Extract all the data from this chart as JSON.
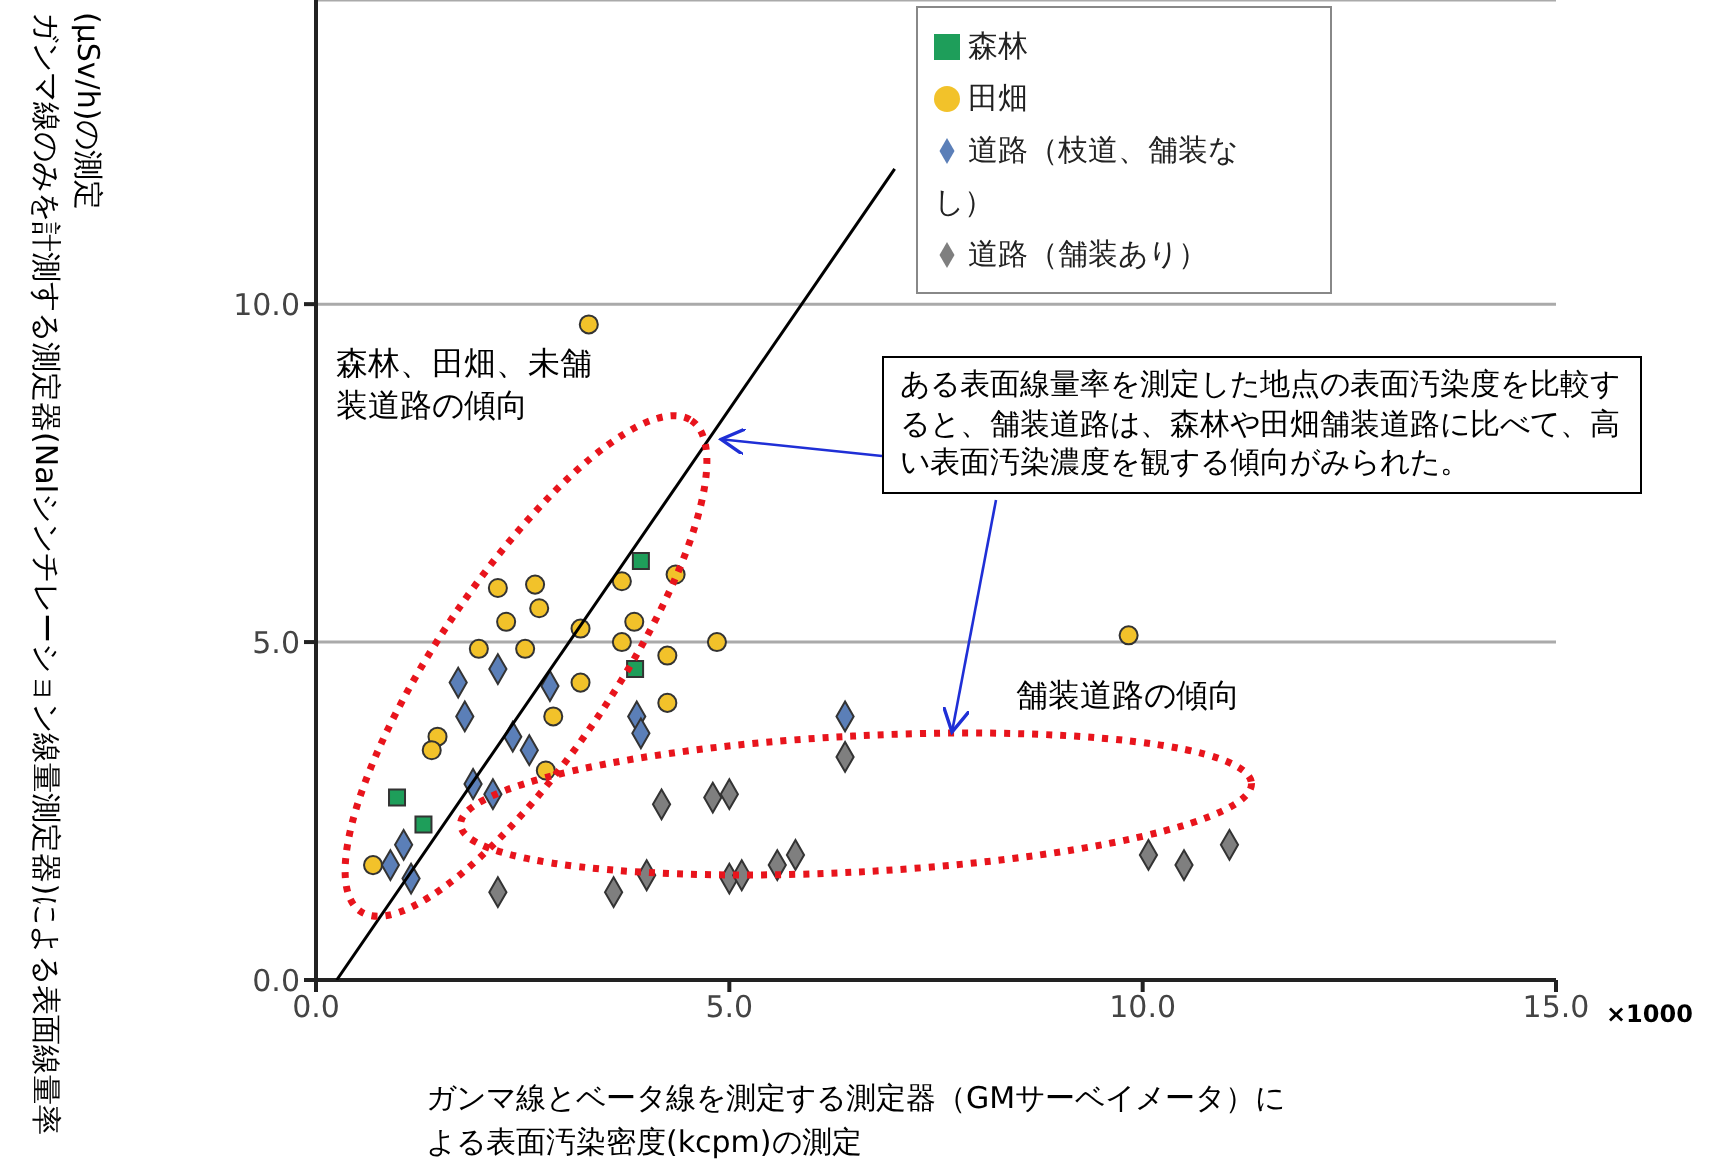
{
  "chart_data": {
    "type": "scatter",
    "xlabel": "ガンマ線とベータ線を測定する測定器（GMサーベイメータ）による表面汚染密度(kcpm)の測定",
    "ylabel": "ガンマ線のみを計測する測定器(NaIシンチレーション線量測定器)による表面線量率(μSv/h)の測定",
    "xlim": [
      0,
      15
    ],
    "xticks": [
      {
        "value": 0,
        "label": "0.0"
      },
      {
        "value": 5,
        "label": "5.0"
      },
      {
        "value": 10,
        "label": "10.0"
      },
      {
        "value": 15,
        "label": "15.0"
      }
    ],
    "ylim": [
      0,
      14.5
    ],
    "yticks": [
      {
        "value": 0,
        "label": "0.0"
      },
      {
        "value": 5,
        "label": "5.0"
      },
      {
        "value": 10,
        "label": "10.0"
      }
    ],
    "grid": "y",
    "legend": "top right",
    "annotations": [
      "森林、田畑、未舗装道路の傾向",
      {
        "text": "ある表面線量率を測定した地点の表面汚染度を比較すると、舗装道路は、森林や田畑舗装道路に比べて、高い表面汚染濃度を観する傾向がみられた。",
        "x": 4.9,
        "y": 8.0
      },
      "舗装道路の傾向",
      "×1000"
    ],
    "series": [
      {
        "name": "森林",
        "color": "#1e9e5a",
        "marker": "square",
        "x": [
          3.93,
          3.86,
          1.3,
          0.98
        ],
        "values": [
          6.2,
          4.6,
          2.3,
          2.7
        ]
      },
      {
        "name": "田畑",
        "color": "#f2c22a",
        "marker": "circle",
        "x": [
          2.2,
          2.65,
          2.7,
          2.3,
          3.2,
          3.7,
          3.85,
          4.35,
          4.85,
          4.25,
          4.25,
          1.97,
          2.53,
          3.2,
          2.87,
          1.47,
          1.4,
          2.78,
          0.69,
          3.7,
          9.83,
          3.3
        ],
        "values": [
          5.8,
          5.85,
          5.5,
          5.3,
          5.2,
          5.0,
          5.3,
          6.0,
          5.0,
          4.8,
          4.1,
          4.9,
          4.9,
          4.4,
          3.9,
          3.6,
          3.4,
          3.1,
          1.7,
          5.9,
          5.1,
          9.7
        ]
      },
      {
        "name": "道路（枝道、舗装なし）",
        "color": "#5b7fb8",
        "marker": "diamond",
        "x": [
          1.72,
          2.2,
          2.83,
          2.38,
          2.58,
          1.8,
          1.9,
          2.14,
          3.88,
          3.93,
          1.06,
          0.9,
          1.15,
          6.4
        ],
        "values": [
          4.4,
          4.6,
          4.35,
          3.6,
          3.4,
          3.9,
          2.9,
          2.75,
          3.9,
          3.65,
          2.0,
          1.7,
          1.5,
          3.9
        ]
      },
      {
        "name": "道路（舗装あり）",
        "color": "#7f7f7f",
        "marker": "diamond",
        "x": [
          4.18,
          4.8,
          2.2,
          3.6,
          4.0,
          5.0,
          6.4,
          5.0,
          5.15,
          5.8,
          5.58,
          10.07,
          10.5,
          11.05
        ],
        "values": [
          2.6,
          2.7,
          1.3,
          1.3,
          1.55,
          1.5,
          3.3,
          2.75,
          1.55,
          1.85,
          1.7,
          1.85,
          1.7,
          2.0
        ]
      },
      {
        "type": "line",
        "color": "#000000",
        "marker": "none",
        "x": [
          0.25,
          7.0
        ],
        "values": [
          0,
          12.0
        ]
      }
    ]
  }
}
